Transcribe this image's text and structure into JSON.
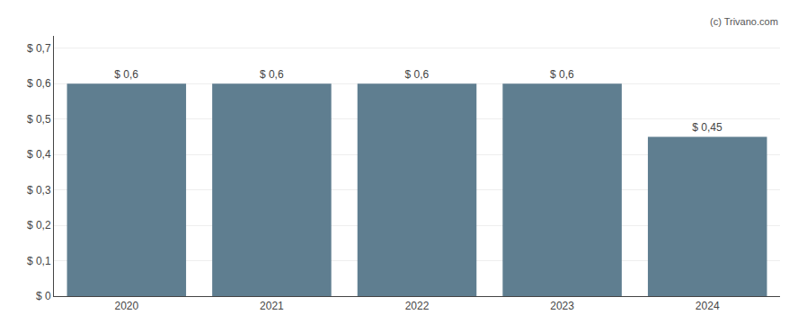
{
  "chart_data": {
    "type": "bar",
    "categories": [
      "2020",
      "2021",
      "2022",
      "2023",
      "2024"
    ],
    "values": [
      0.6,
      0.6,
      0.6,
      0.6,
      0.45
    ],
    "value_labels": [
      "$ 0,6",
      "$ 0,6",
      "$ 0,6",
      "$ 0,6",
      "$ 0,45"
    ],
    "data_labels": true,
    "color": "#5f7e90",
    "ylim": [
      0,
      0.735
    ],
    "yticks": [
      {
        "value": 0,
        "label": "$ 0"
      },
      {
        "value": 0.1,
        "label": "$ 0,1"
      },
      {
        "value": 0.2,
        "label": "$ 0,2"
      },
      {
        "value": 0.3,
        "label": "$ 0,3"
      },
      {
        "value": 0.4,
        "label": "$ 0,4"
      },
      {
        "value": 0.5,
        "label": "$ 0,5"
      },
      {
        "value": 0.6,
        "label": "$ 0,6"
      },
      {
        "value": 0.7,
        "label": "$ 0,7"
      }
    ],
    "grid": true,
    "annotations": [
      "(c) Trivano.com"
    ]
  }
}
